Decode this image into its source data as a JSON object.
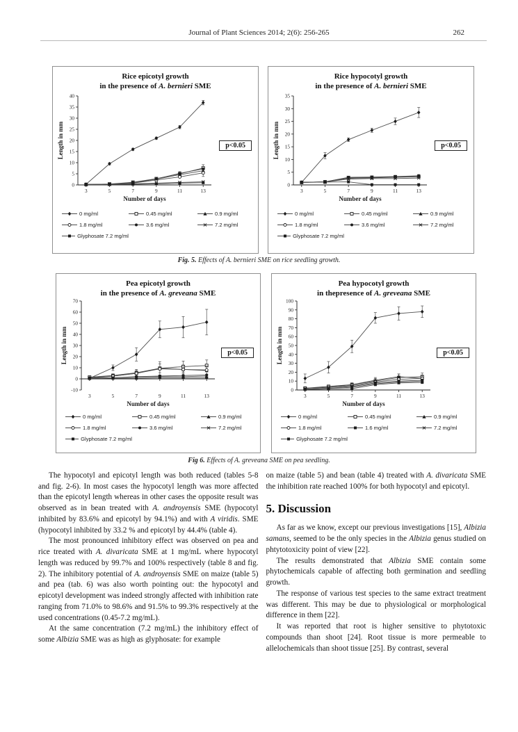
{
  "header": {
    "journal": "Journal of Plant Sciences 2014; 2(6): 256-265",
    "page": "262"
  },
  "figures": {
    "fig5_caption": [
      {
        "t": "Fig. 5.",
        "b": true,
        "i": true
      },
      {
        "t": " Effects of A. bernieri SME on rice seedling growth.",
        "i": true
      }
    ],
    "fig6_caption": [
      {
        "t": "Fig 6.",
        "b": true,
        "i": true
      },
      {
        "t": " Effects of A. greveana SME on pea seedling.",
        "i": true
      }
    ]
  },
  "chart_data": [
    {
      "type": "line",
      "title_line1": "Rice epicotyl growth",
      "title_line2": [
        {
          "t": "in the presence of "
        },
        {
          "t": "A. bernieri",
          "i": true
        },
        {
          "t": " SME"
        }
      ],
      "xlabel": "Number of days",
      "ylabel": "Length in mm",
      "p_label": "p<0.05",
      "x": [
        3,
        5,
        7,
        9,
        11,
        13
      ],
      "ylim": [
        0,
        40
      ],
      "ystep": 5,
      "grid": false,
      "legend_position": "bottom",
      "series": [
        {
          "name": "0 mg/ml",
          "marker": "dia",
          "values": [
            0.3,
            9.5,
            16,
            21,
            26,
            37
          ],
          "err": [
            0,
            0.5,
            0.5,
            0.5,
            0.7,
            1
          ]
        },
        {
          "name": "0.45 mg/ml",
          "marker": "sqo",
          "values": [
            0.2,
            0.4,
            1.2,
            2.8,
            5,
            7.6
          ],
          "err": [
            0,
            0,
            0,
            0.5,
            1,
            1.5
          ]
        },
        {
          "name": "0.9 mg/ml",
          "marker": "tri",
          "values": [
            0.2,
            0.3,
            0.9,
            2.6,
            4.6,
            6.4
          ],
          "err": [
            0,
            0,
            0,
            0,
            0,
            0
          ]
        },
        {
          "name": "1.8 mg/ml",
          "marker": "cio",
          "values": [
            0.2,
            0.3,
            0.8,
            2.2,
            3.6,
            5.4
          ],
          "err": [
            0,
            0,
            0,
            0,
            0,
            1.6
          ]
        },
        {
          "name": "3.6 mg/ml",
          "marker": "cif",
          "values": [
            0.2,
            0.3,
            1.1,
            2.7,
            5.2,
            7.2
          ],
          "err": [
            0,
            0,
            0,
            0,
            0,
            0
          ]
        },
        {
          "name": "7.2 mg/ml",
          "marker": "x",
          "values": [
            0.2,
            0.2,
            0.5,
            0.8,
            1.1,
            1.4
          ],
          "err": [
            0,
            0,
            0,
            0,
            0,
            0
          ]
        },
        {
          "name": "Glyphosate 7.2 mg/ml",
          "marker": "sqf",
          "values": [
            0.2,
            0.2,
            0.3,
            0.5,
            0.8,
            1
          ],
          "err": [
            0,
            0,
            0,
            0,
            0,
            0
          ]
        }
      ]
    },
    {
      "type": "line",
      "title_line1": "Rice hypocotyl growth",
      "title_line2": [
        {
          "t": "in the presence of "
        },
        {
          "t": "A. bernieri",
          "i": true
        },
        {
          "t": " SME"
        }
      ],
      "xlabel": "Number of days",
      "ylabel": "Length in mm",
      "p_label": "p<0.05",
      "x": [
        3,
        5,
        7,
        9,
        11,
        13
      ],
      "ylim": [
        0,
        35
      ],
      "ystep": 5,
      "grid": false,
      "legend_position": "bottom",
      "series": [
        {
          "name": "0 mg/ml",
          "marker": "dia",
          "values": [
            1,
            11.5,
            17.8,
            21.5,
            25,
            28.5
          ],
          "err": [
            0.3,
            1.2,
            0.7,
            0.8,
            1.3,
            2
          ]
        },
        {
          "name": "0.45 mg/ml",
          "marker": "sqo",
          "values": [
            1,
            1.2,
            2.9,
            3,
            3.2,
            3.3
          ],
          "err": [
            0,
            0,
            0,
            0,
            0,
            0
          ]
        },
        {
          "name": "0.9 mg/ml",
          "marker": "tri",
          "values": [
            1,
            1.2,
            2.6,
            2.8,
            3,
            3.2
          ],
          "err": [
            0,
            0,
            0,
            0,
            0,
            0
          ]
        },
        {
          "name": "1.8 mg/ml",
          "marker": "cio",
          "values": [
            1,
            1.1,
            2.7,
            2.9,
            3.1,
            3.3
          ],
          "err": [
            0,
            0,
            0,
            0,
            0,
            0
          ]
        },
        {
          "name": "3.6 mg/ml",
          "marker": "cif",
          "values": [
            1,
            1.2,
            3,
            3.1,
            3.3,
            3.6
          ],
          "err": [
            0,
            0,
            0.4,
            0.4,
            0.4,
            0.5
          ]
        },
        {
          "name": "7.2 mg/ml",
          "marker": "x",
          "values": [
            1,
            1.1,
            2.3,
            2.5,
            2.5,
            2.7
          ],
          "err": [
            0,
            0,
            0,
            0,
            0,
            0
          ]
        },
        {
          "name": "Glyphosate 7.2 mg/ml",
          "marker": "sqf",
          "values": [
            1,
            1.1,
            1.2,
            0.1,
            0.1,
            0.1
          ],
          "err": [
            0,
            0,
            0,
            0,
            0,
            0
          ]
        }
      ]
    },
    {
      "type": "line",
      "title_line1": "Pea epicotyl growth",
      "title_line2": [
        {
          "t": "in the presence of "
        },
        {
          "t": "A. greveana",
          "i": true
        },
        {
          "t": " SME"
        }
      ],
      "xlabel": "Number of days",
      "ylabel": "Length in mm",
      "p_label": "p<0.05",
      "x": [
        3,
        5,
        7,
        9,
        11,
        13
      ],
      "ylim": [
        -10,
        70
      ],
      "ystep": 10,
      "grid": false,
      "legend_position": "bottom",
      "series": [
        {
          "name": "0 mg/ml",
          "marker": "dia",
          "values": [
            0.5,
            10,
            22,
            44.5,
            46.5,
            51
          ],
          "err": [
            1,
            2.5,
            6,
            7.5,
            9.5,
            11.5
          ]
        },
        {
          "name": "0.45 mg/ml",
          "marker": "sqo",
          "values": [
            1.5,
            3,
            5.5,
            9.5,
            11,
            12
          ],
          "err": [
            1,
            1.5,
            3,
            6,
            5,
            5
          ]
        },
        {
          "name": "0.9 mg/ml",
          "marker": "tri",
          "values": [
            1,
            2.5,
            5,
            9.5,
            8.5,
            7.5
          ],
          "err": [
            0.8,
            1.2,
            2.5,
            4,
            4,
            4
          ]
        },
        {
          "name": "1.8 mg/ml",
          "marker": "cio",
          "values": [
            0.5,
            2.5,
            5,
            9,
            8.5,
            8
          ],
          "err": [
            0,
            0,
            0,
            0,
            0,
            0
          ]
        },
        {
          "name": "3.6 mg/ml",
          "marker": "cif",
          "values": [
            0.5,
            1,
            2,
            2.5,
            3,
            3.5
          ],
          "err": [
            0,
            0,
            0,
            0,
            0,
            0
          ]
        },
        {
          "name": "7.2 mg/ml",
          "marker": "x",
          "values": [
            0.5,
            1,
            1.5,
            2,
            2,
            2.5
          ],
          "err": [
            0,
            0,
            0,
            0,
            0,
            0
          ]
        },
        {
          "name": "Glyphosate 7.2 mg/ml",
          "marker": "sqf",
          "values": [
            0.3,
            0.5,
            0.5,
            1,
            1,
            1
          ],
          "err": [
            0,
            0,
            0,
            0,
            0,
            0
          ]
        }
      ]
    },
    {
      "type": "line",
      "title_line1": "Pea hypocotyl growth",
      "title_line2": [
        {
          "t": "in thepresence of "
        },
        {
          "t": "A. greveana",
          "i": true
        },
        {
          "t": " SME"
        }
      ],
      "xlabel": "Number of days",
      "ylabel": "Length in mm",
      "p_label": "p<0.05",
      "x": [
        3,
        5,
        7,
        9,
        11,
        13
      ],
      "ylim": [
        0,
        100
      ],
      "ystep": 10,
      "grid": false,
      "legend_position": "bottom",
      "series": [
        {
          "name": "0 mg/ml",
          "marker": "dia",
          "values": [
            13,
            25.5,
            49,
            81,
            86,
            88
          ],
          "err": [
            5,
            6.5,
            7,
            6,
            7.5,
            6.5
          ]
        },
        {
          "name": "0.45 mg/ml",
          "marker": "sqo",
          "values": [
            2,
            4,
            6,
            10,
            14,
            15
          ],
          "err": [
            1,
            1.5,
            2,
            3,
            4,
            4
          ]
        },
        {
          "name": "0.9 mg/ml",
          "marker": "tri",
          "values": [
            2,
            3,
            6,
            11,
            15,
            13
          ],
          "err": [
            1,
            1,
            2,
            3,
            3,
            3
          ]
        },
        {
          "name": "1.8 mg/ml",
          "marker": "cio",
          "values": [
            2,
            3,
            5,
            9,
            12,
            13
          ],
          "err": [
            0,
            0,
            0,
            0,
            0,
            0
          ]
        },
        {
          "name": "1.6 mg/ml",
          "marker": "sqf",
          "values": [
            1,
            2,
            4,
            8,
            10,
            11
          ],
          "err": [
            0,
            0,
            0,
            0,
            0,
            0
          ]
        },
        {
          "name": "7.2 mg/ml",
          "marker": "x",
          "values": [
            1,
            2,
            3,
            7,
            9,
            10
          ],
          "err": [
            0,
            0,
            0,
            0,
            0,
            0
          ]
        },
        {
          "name": "Glyphosate 7.2 mg/ml",
          "marker": "sqf",
          "values": [
            0.5,
            1,
            1.5,
            6,
            8,
            8.5
          ],
          "err": [
            0,
            0,
            0,
            0,
            0,
            0
          ]
        }
      ]
    }
  ],
  "body": {
    "left": [
      {
        "segments": [
          {
            "t": "The hypocotyl and epicotyl length was both reduced (tables 5-8 and fig. 2-6). In most cases the hypocotyl length was more affected than the epicotyl length whereas in other cases the opposite result was observed as in bean treated with "
          },
          {
            "t": "A. androyensis",
            "i": true
          },
          {
            "t": " SME (hypocotyl inhibited by 83.6% and epicotyl by 94.1%) and with "
          },
          {
            "t": "A viridis",
            "i": true
          },
          {
            "t": ". SME (hypocotyl inhibited by 33.2 % and epicotyl by 44.4% (table 4)."
          }
        ]
      },
      {
        "segments": [
          {
            "t": "The most pronounced inhibitory effect was observed on pea and rice treated with "
          },
          {
            "t": "A. divaricata",
            "i": true
          },
          {
            "t": " SME at 1 mg/mL where hypocotyl length was reduced by 99.7% and 100% respectively (table 8 and fig. 2). The inhibitory potential of "
          },
          {
            "t": "A. androyensis",
            "i": true
          },
          {
            "t": " SME on maize (table 5) and pea (tab. 6) was also worth pointing out: the hypocotyl and epicotyl development was indeed strongly affected with inhibition rate ranging from 71.0% to 98.6% and 91.5% to 99.3% respectively at the used concentrations (0.45-7.2 mg/mL)."
          }
        ]
      },
      {
        "segments": [
          {
            "t": "At the same concentration (7.2 mg/mL) the inhibitory effect of some "
          },
          {
            "t": "Albizia",
            "i": true
          },
          {
            "t": " SME was as high as glyphosate: for example"
          }
        ]
      }
    ],
    "right_intro": {
      "segments": [
        {
          "t": "on maize (table 5) and bean (table 4) treated with "
        },
        {
          "t": "A. divaricata",
          "i": true
        },
        {
          "t": " SME the inhibition rate reached 100% for both hypocotyl and epicotyl."
        }
      ]
    },
    "heading": "5. Discussion",
    "right": [
      {
        "segments": [
          {
            "t": "As far as we know, except our previous investigations [15], "
          },
          {
            "t": "Albizia samans",
            "i": true
          },
          {
            "t": ", seemed to be the only species in the "
          },
          {
            "t": "Albizia",
            "i": true
          },
          {
            "t": " genus studied on phtytotoxicity point of view [22]."
          }
        ]
      },
      {
        "segments": [
          {
            "t": "The results demonstrated that "
          },
          {
            "t": "Albizia",
            "i": true
          },
          {
            "t": " SME contain some phytochemicals capable of affecting both germination and seedling growth."
          }
        ]
      },
      {
        "segments": [
          {
            "t": "The response of various test species to the same extract treatment was different. This may be due to physiological or morphological difference in them [22]."
          }
        ]
      },
      {
        "segments": [
          {
            "t": "It was reported that root is higher sensitive to phytotoxic compounds than shoot [24]. Root tissue is more permeable to allelochemicals than shoot tissue [25]. By contrast, several"
          }
        ]
      }
    ]
  }
}
